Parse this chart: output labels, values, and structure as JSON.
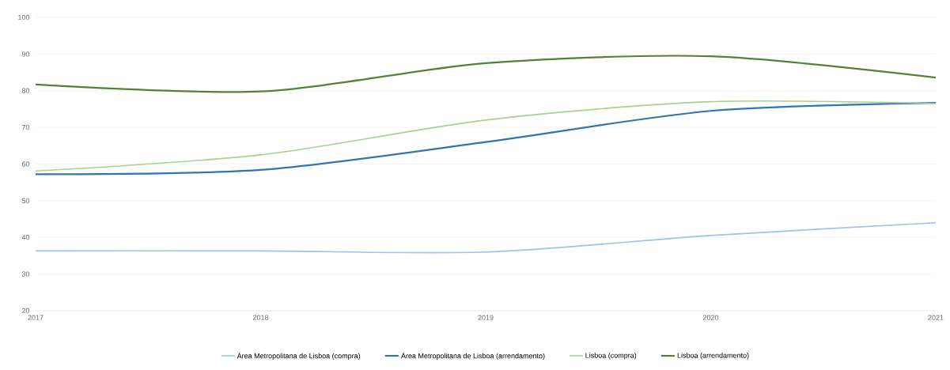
{
  "chart_data": {
    "type": "line",
    "categories": [
      "2017",
      "2018",
      "2019",
      "2020",
      "2021"
    ],
    "series": [
      {
        "name": "Área Metropolitana de Lisboa (compra)",
        "color": "#9dc3e6",
        "values": [
          36.3,
          36.3,
          36,
          40.5,
          44
        ]
      },
      {
        "name": "Área Metropolitana de Lisboa (arrendamento)",
        "color": "#2e75b6",
        "values": [
          57.2,
          58.4,
          66,
          74.5,
          76.7
        ]
      },
      {
        "name": "Lisboa (compra)",
        "color": "#a9d18e",
        "values": [
          58.1,
          62.5,
          72,
          77,
          76.5
        ]
      },
      {
        "name": "Lisboa (arrendamento)",
        "color": "#548235",
        "values": [
          81.7,
          79.8,
          87.5,
          89.4,
          83.6
        ]
      }
    ],
    "ylim": [
      20,
      100
    ],
    "yticks": [
      20,
      30,
      40,
      50,
      60,
      70,
      80,
      90,
      100
    ],
    "grid": "y",
    "legend": "bottom",
    "marker": "none",
    "line_style": "solid"
  }
}
